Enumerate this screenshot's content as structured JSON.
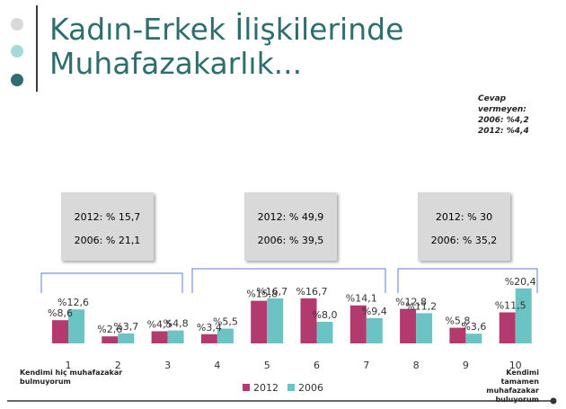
{
  "slide": {
    "title_line1": "Kadın-Erkek İlişkilerinde",
    "title_line2": "Muhafazakarlık...",
    "dot_colors": [
      "#d9d9d9",
      "#a8d9d9",
      "#2f6e6e"
    ],
    "note": [
      "Cevap",
      "vermeyen:",
      "2006: %4,2",
      "2012:  %4,4"
    ]
  },
  "groups": [
    {
      "line1": "2012: % 15,7",
      "line2": "2006: % 21,1"
    },
    {
      "line1": "2012: % 49,9",
      "line2": "2006: % 39,5"
    },
    {
      "line1": "2012: % 30",
      "line2": "2006: % 35,2"
    }
  ],
  "scale_labels": {
    "left": [
      "Kendimi hiç muhafazakar",
      "bulmuyorum"
    ],
    "right": [
      "Kendimi tamamen",
      "muhafazakar",
      "buluyorum"
    ]
  },
  "chart_data": {
    "type": "bar",
    "categories": [
      "1",
      "2",
      "3",
      "4",
      "5",
      "6",
      "7",
      "8",
      "9",
      "10"
    ],
    "series": [
      {
        "name": "2012",
        "color": "#b23a6e",
        "values": [
          8.6,
          2.6,
          4.5,
          3.4,
          15.8,
          16.7,
          14.1,
          12.8,
          5.8,
          11.5
        ],
        "labels": [
          "%8,6",
          "%2,6",
          "%4,5",
          "%3,4",
          "%15,8",
          "%16,7",
          "%14,1",
          "%12,8",
          "%5,8",
          "%11,5"
        ]
      },
      {
        "name": "2006",
        "color": "#6cc3c3",
        "values": [
          12.6,
          3.7,
          4.8,
          5.5,
          16.7,
          8.0,
          9.4,
          11.2,
          3.6,
          20.4
        ],
        "labels": [
          "%12,6",
          "%3,7",
          "%4,8",
          "%5,5",
          "%16,7",
          "%8,0",
          "%9,4",
          "%11,2",
          "%3,6",
          "%20,4"
        ]
      }
    ],
    "legend": [
      "2012",
      "2006"
    ],
    "legend_position": "bottom"
  }
}
